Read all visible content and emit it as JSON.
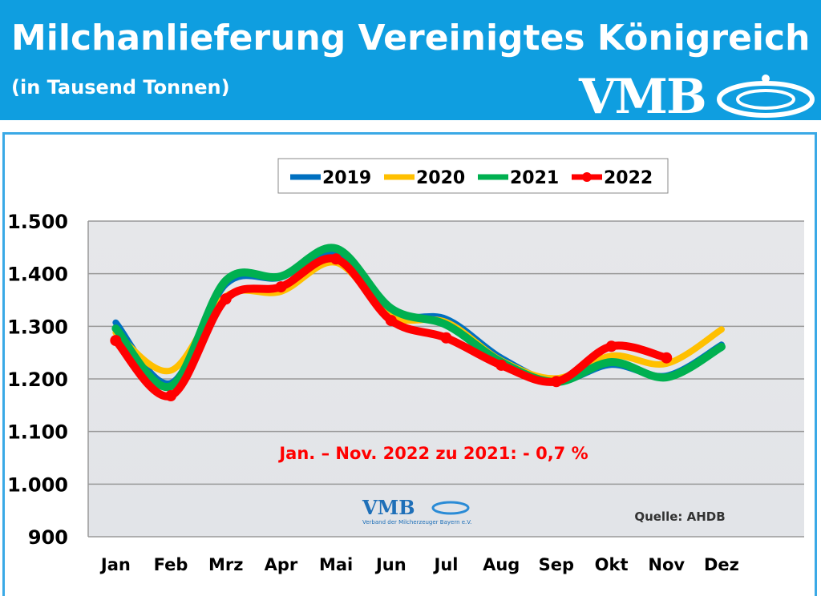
{
  "header": {
    "title": "Milchanlieferung Vereinigtes Königreich",
    "subtitle": "(in Tausend Tonnen)",
    "logo": "VMB"
  },
  "chart_data": {
    "type": "line",
    "title": "Milchanlieferung Vereinigtes Königreich",
    "subtitle": "(in Tausend Tonnen)",
    "categories": [
      "Jan",
      "Feb",
      "Mrz",
      "Apr",
      "Mai",
      "Jun",
      "Jul",
      "Aug",
      "Sep",
      "Okt",
      "Nov",
      "Dez"
    ],
    "ylim": [
      900,
      1500
    ],
    "yticks": [
      900,
      1000,
      1100,
      1200,
      1300,
      1400,
      1500
    ],
    "ytick_labels": [
      "900",
      "1.000",
      "1.100",
      "1.200",
      "1.300",
      "1.400",
      "1.500"
    ],
    "grid": true,
    "legend_position": "top",
    "series": [
      {
        "name": "2019",
        "color": "#0070c0",
        "values": [
          1307,
          1192,
          1380,
          1393,
          1441,
          1326,
          1314,
          1240,
          1195,
          1227,
          1206,
          1265
        ]
      },
      {
        "name": "2020",
        "color": "#ffc000",
        "values": [
          1288,
          1216,
          1357,
          1366,
          1421,
          1319,
          1308,
          1235,
          1201,
          1244,
          1229,
          1294
        ]
      },
      {
        "name": "2021",
        "color": "#00b050",
        "values": [
          1296,
          1186,
          1387,
          1395,
          1448,
          1334,
          1303,
          1232,
          1194,
          1232,
          1203,
          1261
        ]
      },
      {
        "name": "2022",
        "color": "#ff0000",
        "markers": true,
        "values": [
          1273,
          1168,
          1352,
          1375,
          1428,
          1311,
          1278,
          1226,
          1195,
          1262,
          1240,
          null
        ]
      }
    ],
    "annotation": "Jan. – Nov. 2022 zu 2021: - 0,7 %",
    "source": "Quelle: AHDB",
    "watermark": "VMB",
    "watermark_sub": "Verband der Milcherzeuger Bayern e.V."
  }
}
